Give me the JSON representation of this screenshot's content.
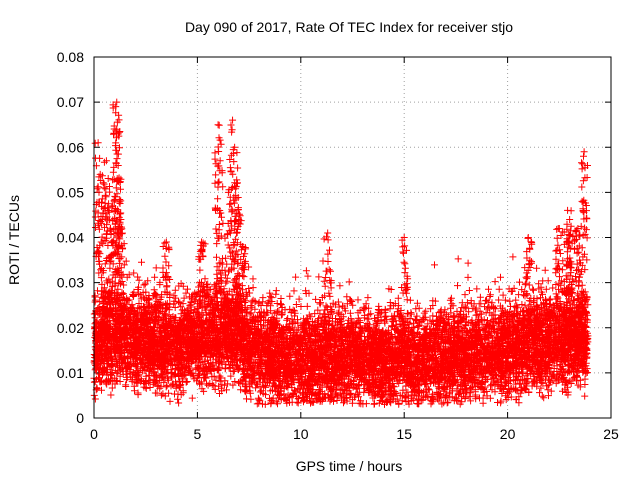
{
  "chart_data": {
    "type": "scatter",
    "title": "Day 090 of 2017, Rate Of TEC Index for receiver stjo",
    "xlabel": "GPS time / hours",
    "ylabel": "ROTI / TECUs",
    "xlim": [
      0,
      25
    ],
    "ylim": [
      0,
      0.08
    ],
    "xticks": [
      0,
      5,
      10,
      15,
      20,
      25
    ],
    "xtick_labels": [
      "0",
      "5",
      "10",
      "15",
      "20",
      "25"
    ],
    "yticks": [
      0,
      0.01,
      0.02,
      0.03,
      0.04,
      0.05,
      0.06,
      0.07,
      0.08
    ],
    "ytick_labels": [
      "0",
      "0.01",
      "0.02",
      "0.03",
      "0.04",
      "0.05",
      "0.06",
      "0.07",
      "0.08"
    ],
    "grid": true,
    "marker": "+",
    "color": "#ff0000",
    "data_range_hours": [
      0,
      23.9
    ],
    "baseline_profile": [
      {
        "x": 0.0,
        "y": 0.016
      },
      {
        "x": 1.0,
        "y": 0.018
      },
      {
        "x": 2.0,
        "y": 0.017
      },
      {
        "x": 4.0,
        "y": 0.016
      },
      {
        "x": 6.5,
        "y": 0.019
      },
      {
        "x": 8.0,
        "y": 0.014
      },
      {
        "x": 10.0,
        "y": 0.013
      },
      {
        "x": 12.0,
        "y": 0.014
      },
      {
        "x": 14.0,
        "y": 0.013
      },
      {
        "x": 16.0,
        "y": 0.013
      },
      {
        "x": 18.0,
        "y": 0.014
      },
      {
        "x": 20.0,
        "y": 0.015
      },
      {
        "x": 22.0,
        "y": 0.017
      },
      {
        "x": 23.9,
        "y": 0.017
      }
    ],
    "peak_points": [
      {
        "x": 0.2,
        "y": 0.061
      },
      {
        "x": 0.3,
        "y": 0.054
      },
      {
        "x": 0.5,
        "y": 0.051
      },
      {
        "x": 0.6,
        "y": 0.057
      },
      {
        "x": 0.9,
        "y": 0.047
      },
      {
        "x": 1.05,
        "y": 0.069
      },
      {
        "x": 1.1,
        "y": 0.07
      },
      {
        "x": 1.1,
        "y": 0.064
      },
      {
        "x": 1.2,
        "y": 0.053
      },
      {
        "x": 1.3,
        "y": 0.044
      },
      {
        "x": 3.5,
        "y": 0.039
      },
      {
        "x": 5.2,
        "y": 0.039
      },
      {
        "x": 6.0,
        "y": 0.065
      },
      {
        "x": 6.1,
        "y": 0.057
      },
      {
        "x": 6.5,
        "y": 0.05
      },
      {
        "x": 6.7,
        "y": 0.066
      },
      {
        "x": 6.8,
        "y": 0.06
      },
      {
        "x": 6.9,
        "y": 0.052
      },
      {
        "x": 7.0,
        "y": 0.044
      },
      {
        "x": 7.2,
        "y": 0.038
      },
      {
        "x": 11.3,
        "y": 0.041
      },
      {
        "x": 15.0,
        "y": 0.04
      },
      {
        "x": 21.0,
        "y": 0.04
      },
      {
        "x": 22.5,
        "y": 0.042
      },
      {
        "x": 22.9,
        "y": 0.046
      },
      {
        "x": 23.0,
        "y": 0.044
      },
      {
        "x": 23.4,
        "y": 0.042
      },
      {
        "x": 23.6,
        "y": 0.048
      },
      {
        "x": 23.7,
        "y": 0.059
      }
    ]
  }
}
